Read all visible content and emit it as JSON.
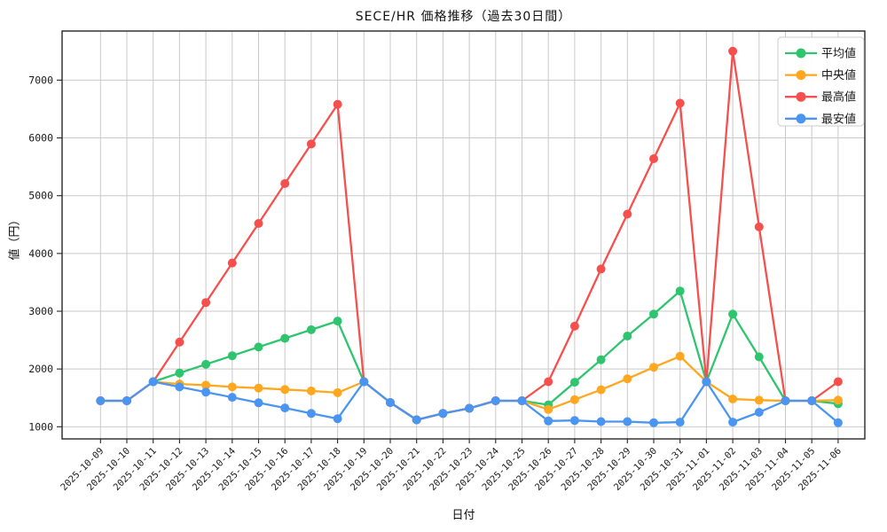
{
  "chart_data": {
    "type": "line",
    "title": "SECE/HR 価格推移（過去30日間）",
    "xlabel": "日付",
    "ylabel": "値（円）",
    "x": [
      "2025-10-09",
      "2025-10-10",
      "2025-10-11",
      "2025-10-12",
      "2025-10-13",
      "2025-10-14",
      "2025-10-15",
      "2025-10-16",
      "2025-10-17",
      "2025-10-18",
      "2025-10-19",
      "2025-10-20",
      "2025-10-21",
      "2025-10-22",
      "2025-10-23",
      "2025-10-24",
      "2025-10-25",
      "2025-10-26",
      "2025-10-27",
      "2025-10-28",
      "2025-10-29",
      "2025-10-30",
      "2025-10-31",
      "2025-11-01",
      "2025-11-02",
      "2025-11-03",
      "2025-11-04",
      "2025-11-05",
      "2025-11-06"
    ],
    "series": [
      {
        "name": "平均値",
        "color": "#2fc56f",
        "values": [
          1450,
          1450,
          1780,
          1930,
          2080,
          2230,
          2380,
          2530,
          2680,
          2830,
          1780,
          1420,
          1120,
          1230,
          1320,
          1450,
          1450,
          1380,
          1770,
          2160,
          2570,
          2950,
          3350,
          1780,
          2950,
          2210,
          1450,
          1450,
          1400
        ]
      },
      {
        "name": "中央値",
        "color": "#ffa71f",
        "values": [
          1450,
          1450,
          1780,
          1740,
          1720,
          1690,
          1670,
          1645,
          1620,
          1590,
          1780,
          1420,
          1120,
          1230,
          1320,
          1450,
          1450,
          1300,
          1470,
          1640,
          1830,
          2030,
          2220,
          1780,
          1480,
          1460,
          1450,
          1450,
          1460
        ]
      },
      {
        "name": "最高値",
        "color": "#f5504d",
        "values": [
          1450,
          1450,
          1780,
          2465,
          3150,
          3835,
          4520,
          5210,
          5895,
          6580,
          1780,
          1420,
          1120,
          1230,
          1320,
          1450,
          1450,
          1780,
          2740,
          3730,
          4680,
          5640,
          6600,
          1780,
          7500,
          4460,
          1450,
          1450,
          1780
        ]
      },
      {
        "name": "最安値",
        "color": "#4b95f2",
        "values": [
          1450,
          1450,
          1780,
          1690,
          1600,
          1510,
          1415,
          1325,
          1230,
          1140,
          1780,
          1420,
          1120,
          1230,
          1320,
          1450,
          1450,
          1100,
          1110,
          1090,
          1090,
          1070,
          1080,
          1780,
          1080,
          1250,
          1450,
          1450,
          1070
        ]
      }
    ],
    "yticks": [
      1000,
      2000,
      3000,
      4000,
      5000,
      6000,
      7000
    ],
    "ylim": [
      790,
      7850
    ],
    "grid": true,
    "legend_position": "upper right",
    "grid_color": "#c9c9c9",
    "spine_color": "#262626"
  }
}
